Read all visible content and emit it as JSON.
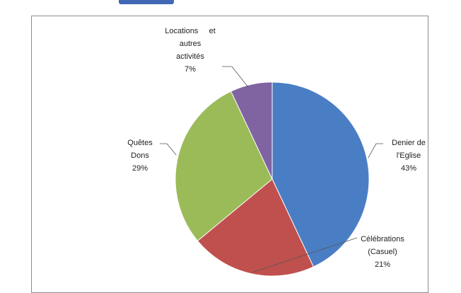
{
  "chart_data": {
    "type": "pie",
    "title": "",
    "slices": [
      {
        "lines": [
          "Denier de",
          "l'Eglise",
          "43%"
        ],
        "value": 43,
        "color": "#4a7ec4"
      },
      {
        "lines": [
          "Célébrations",
          "(Casuel)",
          "21%"
        ],
        "value": 21,
        "color": "#c0504d"
      },
      {
        "lines": [
          "Quêtes",
          "Dons",
          "29%"
        ],
        "value": 29,
        "color": "#9bbb59"
      },
      {
        "lines": [
          "Locations     et",
          "autres",
          "activités",
          "7%"
        ],
        "value": 7,
        "color": "#8064a2"
      }
    ],
    "start_angle_deg": 0,
    "direction": "clockwise",
    "legend": "none"
  }
}
